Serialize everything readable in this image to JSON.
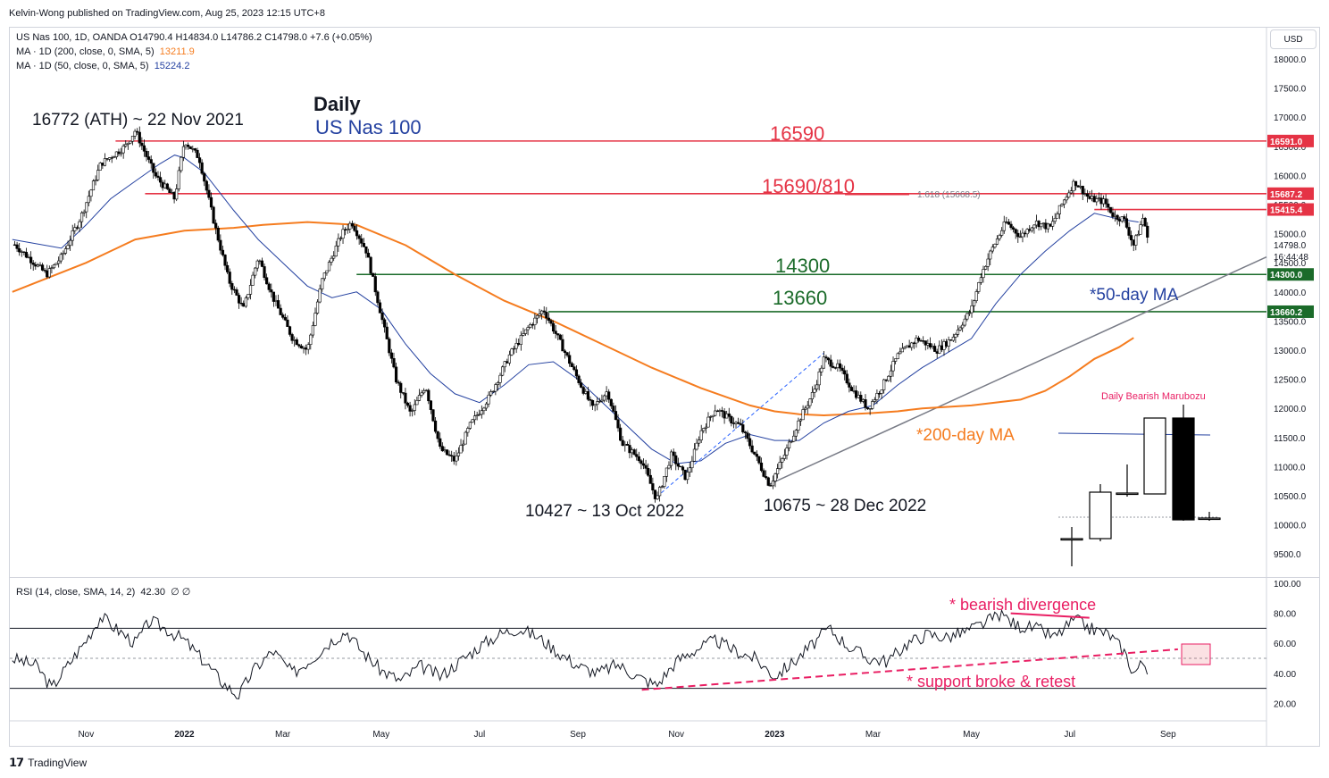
{
  "header": {
    "publisher": "Kelvin-Wong published on TradingView.com, Aug 25, 2023 12:15 UTC+8",
    "symbol_line": "US Nas 100, 1D, OANDA  O14790.4  H14834.0  L14786.2  C14798.0  +7.6 (+0.05%)",
    "ma200_label": "MA · 1D (200, close, 0, SMA, 5)",
    "ma200_value": "13211.9",
    "ma50_label": "MA · 1D (50, close, 0, SMA, 5)",
    "ma50_value": "15224.2",
    "currency_button": "USD",
    "rsi_label": "RSI (14, close, SMA, 14, 2)",
    "rsi_value": "42.30",
    "rsi_extra": "∅  ∅"
  },
  "footer": {
    "brand": "TradingView"
  },
  "colors": {
    "resistance": "#e53345",
    "support": "#1b6b2a",
    "ma50": "#2441a0",
    "ma200": "#f57c1f",
    "trend": "#787b86",
    "divergence": "#e91e63",
    "candle": "#000000"
  },
  "chart_data": [
    {
      "type": "candlestick",
      "title": "Daily",
      "subtitle": "US Nas 100",
      "ylim": [
        9200,
        18200
      ],
      "y_ticks": [
        "18000.0",
        "17500.0",
        "17000.0",
        "16500.0",
        "16000.0",
        "15500.0",
        "15000.0",
        "14500.0",
        "14000.0",
        "13500.0",
        "13000.0",
        "12500.0",
        "12000.0",
        "11500.0",
        "11000.0",
        "10500.0",
        "10000.0",
        "9500.0"
      ],
      "x_ticks": [
        "Nov",
        "2022",
        "Mar",
        "May",
        "Jul",
        "Sep",
        "Nov",
        "2023",
        "Mar",
        "May",
        "Jul",
        "Sep"
      ],
      "x_month_index": [
        1,
        3,
        5,
        7,
        9,
        11,
        13,
        15,
        17,
        19,
        21,
        23
      ],
      "x_range_months": [
        -0.55,
        25.0
      ],
      "price_path": [
        [
          -0.5,
          14850
        ],
        [
          0.2,
          14300
        ],
        [
          0.5,
          14600
        ],
        [
          0.9,
          15300
        ],
        [
          1.3,
          16200
        ],
        [
          1.8,
          16500
        ],
        [
          2.0,
          16772
        ],
        [
          2.4,
          16000
        ],
        [
          2.8,
          15600
        ],
        [
          3.0,
          16600
        ],
        [
          3.3,
          16300
        ],
        [
          3.6,
          15200
        ],
        [
          3.9,
          14200
        ],
        [
          4.2,
          13700
        ],
        [
          4.5,
          14600
        ],
        [
          4.8,
          13900
        ],
        [
          5.2,
          13200
        ],
        [
          5.5,
          13000
        ],
        [
          5.8,
          14200
        ],
        [
          6.2,
          15000
        ],
        [
          6.4,
          15200
        ],
        [
          6.7,
          14700
        ],
        [
          7.0,
          13600
        ],
        [
          7.3,
          12500
        ],
        [
          7.6,
          11900
        ],
        [
          7.9,
          12400
        ],
        [
          8.2,
          11300
        ],
        [
          8.5,
          11100
        ],
        [
          8.8,
          11700
        ],
        [
          9.2,
          12200
        ],
        [
          9.6,
          12900
        ],
        [
          10.0,
          13400
        ],
        [
          10.3,
          13700
        ],
        [
          10.6,
          13200
        ],
        [
          11.0,
          12500
        ],
        [
          11.3,
          12000
        ],
        [
          11.6,
          12300
        ],
        [
          11.9,
          11400
        ],
        [
          12.3,
          11100
        ],
        [
          12.6,
          10427
        ],
        [
          12.9,
          11200
        ],
        [
          13.2,
          10800
        ],
        [
          13.5,
          11600
        ],
        [
          13.8,
          12000
        ],
        [
          14.1,
          11800
        ],
        [
          14.3,
          11700
        ],
        [
          14.6,
          11200
        ],
        [
          14.9,
          10675
        ],
        [
          15.2,
          11200
        ],
        [
          15.5,
          11800
        ],
        [
          15.8,
          12300
        ],
        [
          16.0,
          12850
        ],
        [
          16.3,
          12700
        ],
        [
          16.6,
          12300
        ],
        [
          16.9,
          12000
        ],
        [
          17.2,
          12400
        ],
        [
          17.5,
          12900
        ],
        [
          17.9,
          13200
        ],
        [
          18.3,
          13000
        ],
        [
          18.6,
          13200
        ],
        [
          19.0,
          13700
        ],
        [
          19.2,
          14300
        ],
        [
          19.4,
          14700
        ],
        [
          19.7,
          15200
        ],
        [
          20.0,
          14950
        ],
        [
          20.3,
          15200
        ],
        [
          20.6,
          15100
        ],
        [
          20.9,
          15600
        ],
        [
          21.1,
          15900
        ],
        [
          21.4,
          15600
        ],
        [
          21.7,
          15550
        ],
        [
          21.9,
          15300
        ],
        [
          22.1,
          15250
        ],
        [
          22.3,
          14800
        ],
        [
          22.5,
          15300
        ],
        [
          22.6,
          14798
        ]
      ],
      "ma50_path": [
        [
          -0.5,
          14900
        ],
        [
          0.5,
          14750
        ],
        [
          1.0,
          15150
        ],
        [
          1.5,
          15600
        ],
        [
          2.0,
          15900
        ],
        [
          2.5,
          16200
        ],
        [
          2.8,
          16350
        ],
        [
          3.0,
          16300
        ],
        [
          3.4,
          16050
        ],
        [
          4.0,
          15400
        ],
        [
          4.5,
          14900
        ],
        [
          5.0,
          14500
        ],
        [
          5.5,
          14100
        ],
        [
          6.0,
          13900
        ],
        [
          6.5,
          14000
        ],
        [
          7.0,
          13700
        ],
        [
          7.5,
          13100
        ],
        [
          8.0,
          12600
        ],
        [
          8.5,
          12250
        ],
        [
          9.0,
          12100
        ],
        [
          9.5,
          12400
        ],
        [
          10.0,
          12750
        ],
        [
          10.5,
          12800
        ],
        [
          11.0,
          12500
        ],
        [
          11.5,
          12100
        ],
        [
          12.0,
          11700
        ],
        [
          12.5,
          11300
        ],
        [
          13.0,
          11050
        ],
        [
          13.5,
          11100
        ],
        [
          14.0,
          11400
        ],
        [
          14.5,
          11550
        ],
        [
          15.0,
          11450
        ],
        [
          15.5,
          11450
        ],
        [
          16.0,
          11750
        ],
        [
          16.5,
          11950
        ],
        [
          17.0,
          12050
        ],
        [
          17.5,
          12400
        ],
        [
          18.0,
          12700
        ],
        [
          18.5,
          12950
        ],
        [
          19.0,
          13200
        ],
        [
          19.5,
          13800
        ],
        [
          20.0,
          14300
        ],
        [
          20.5,
          14700
        ],
        [
          21.0,
          15050
        ],
        [
          21.5,
          15350
        ],
        [
          22.0,
          15250
        ],
        [
          22.4,
          15200
        ]
      ],
      "ma200_path": [
        [
          -0.5,
          14000
        ],
        [
          1.0,
          14500
        ],
        [
          2.0,
          14900
        ],
        [
          3.0,
          15050
        ],
        [
          4.0,
          15100
        ],
        [
          4.6,
          15150
        ],
        [
          5.5,
          15200
        ],
        [
          6.5,
          15150
        ],
        [
          7.5,
          14800
        ],
        [
          8.5,
          14300
        ],
        [
          9.5,
          13850
        ],
        [
          10.5,
          13500
        ],
        [
          11.5,
          13100
        ],
        [
          12.5,
          12700
        ],
        [
          13.5,
          12350
        ],
        [
          14.5,
          12050
        ],
        [
          15.0,
          11950
        ],
        [
          15.5,
          11900
        ],
        [
          16.0,
          11880
        ],
        [
          16.5,
          11900
        ],
        [
          17.0,
          11920
        ],
        [
          17.5,
          11950
        ],
        [
          18.0,
          12000
        ],
        [
          19.0,
          12050
        ],
        [
          20.0,
          12150
        ],
        [
          20.5,
          12300
        ],
        [
          21.0,
          12550
        ],
        [
          21.5,
          12850
        ],
        [
          22.0,
          13050
        ],
        [
          22.3,
          13211.9
        ]
      ],
      "horizontal_levels": [
        {
          "label": "16590",
          "price": 16591,
          "tag": "16591.0",
          "kind": "resistance",
          "x_from": 1.6
        },
        {
          "label": "15690/810",
          "price": 15687,
          "tag": "15687.2",
          "kind": "resistance",
          "x_from": 2.2
        },
        {
          "label": "",
          "price": 15415,
          "tag": "15415.4",
          "kind": "resistance",
          "x_from": 21.5
        },
        {
          "label": "14300",
          "price": 14300,
          "tag": "14300.0",
          "kind": "support",
          "x_from": 6.5
        },
        {
          "label": "13660",
          "price": 13660,
          "tag": "13660.2",
          "kind": "support",
          "x_from": 10.4
        }
      ],
      "last_price_tag": "14798.0",
      "countdown_tag": "16:44:48",
      "fib_note": "1.618 (15668.5)",
      "annotations": {
        "ath": "16772 (ATH) ~ 22 Nov 2021",
        "low_oct": "10427 ~ 13 Oct 2022",
        "low_dec": "10675 ~ 28 Dec 2022",
        "ma50_note": "*50-day MA",
        "ma200_note": "*200-day MA",
        "inset_title": "Daily Bearish Marubozu"
      }
    },
    {
      "type": "line",
      "title": "RSI (14, close, SMA, 14, 2)",
      "ylim": [
        10,
        105
      ],
      "y_ticks": [
        "100.00",
        "80.00",
        "60.00",
        "40.00",
        "20.00"
      ],
      "overbought": 70,
      "oversold": 30,
      "midline": 50,
      "rsi_path": [
        [
          -0.5,
          50
        ],
        [
          0.0,
          45
        ],
        [
          0.3,
          30
        ],
        [
          0.6,
          44
        ],
        [
          1.0,
          62
        ],
        [
          1.3,
          78
        ],
        [
          1.6,
          70
        ],
        [
          2.0,
          60
        ],
        [
          2.3,
          75
        ],
        [
          2.6,
          70
        ],
        [
          3.0,
          62
        ],
        [
          3.4,
          48
        ],
        [
          3.8,
          33
        ],
        [
          4.1,
          25
        ],
        [
          4.4,
          42
        ],
        [
          4.8,
          55
        ],
        [
          5.2,
          40
        ],
        [
          5.6,
          50
        ],
        [
          6.0,
          62
        ],
        [
          6.3,
          68
        ],
        [
          6.6,
          55
        ],
        [
          7.0,
          42
        ],
        [
          7.4,
          35
        ],
        [
          7.8,
          45
        ],
        [
          8.2,
          38
        ],
        [
          8.6,
          48
        ],
        [
          9.0,
          58
        ],
        [
          9.4,
          66
        ],
        [
          9.8,
          70
        ],
        [
          10.2,
          64
        ],
        [
          10.6,
          54
        ],
        [
          11.0,
          45
        ],
        [
          11.4,
          40
        ],
        [
          11.8,
          46
        ],
        [
          12.2,
          38
        ],
        [
          12.6,
          32
        ],
        [
          13.0,
          48
        ],
        [
          13.4,
          56
        ],
        [
          13.8,
          62
        ],
        [
          14.2,
          55
        ],
        [
          14.6,
          50
        ],
        [
          15.0,
          38
        ],
        [
          15.4,
          48
        ],
        [
          15.8,
          60
        ],
        [
          16.1,
          70
        ],
        [
          16.5,
          58
        ],
        [
          16.9,
          50
        ],
        [
          17.3,
          48
        ],
        [
          17.7,
          60
        ],
        [
          18.1,
          66
        ],
        [
          18.5,
          64
        ],
        [
          18.9,
          68
        ],
        [
          19.3,
          74
        ],
        [
          19.6,
          80
        ],
        [
          19.9,
          72
        ],
        [
          20.3,
          70
        ],
        [
          20.7,
          64
        ],
        [
          21.1,
          76
        ],
        [
          21.4,
          70
        ],
        [
          21.8,
          66
        ],
        [
          22.1,
          55
        ],
        [
          22.3,
          40
        ],
        [
          22.5,
          48
        ],
        [
          22.6,
          42.3
        ]
      ],
      "annotations": {
        "divergence": "* bearish divergence",
        "support_break": "* support broke & retest"
      }
    }
  ]
}
